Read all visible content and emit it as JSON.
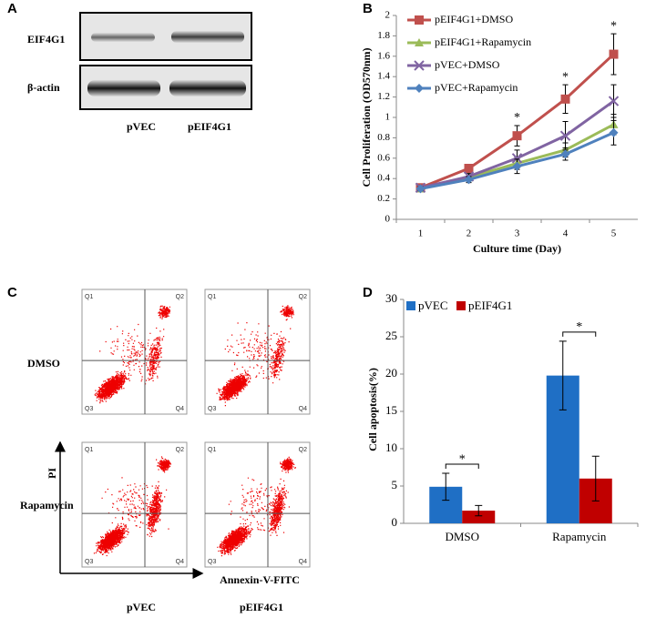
{
  "panel_labels": [
    "A",
    "B",
    "C",
    "D"
  ],
  "blot": {
    "rows": [
      "EIF4G1",
      "β-actin"
    ],
    "lanes": [
      "pVEC",
      "pEIF4G1"
    ]
  },
  "flow": {
    "rows": [
      "DMSO",
      "Rapamycin"
    ],
    "columns": [
      "pVEC",
      "pEIF4G1"
    ],
    "y_label": "PI",
    "x_label": "Annexin-V-FITC",
    "quadrants": [
      "Q1",
      "Q2",
      "Q3",
      "Q4"
    ]
  },
  "chart_data": [
    {
      "type": "line",
      "y_label": "Cell Proliferation (OD570nm)",
      "x_label": "Culture time (Day)",
      "categories": [
        "1",
        "2",
        "3",
        "4",
        "5"
      ],
      "ylim": [
        0,
        2
      ],
      "yticks": [
        0,
        0.2,
        0.4,
        0.6,
        0.8,
        1,
        1.2,
        1.4,
        1.6,
        1.8,
        2
      ],
      "series": [
        {
          "name": "pEIF4G1+DMSO",
          "color": "#c0504d",
          "marker": "square",
          "values": [
            0.31,
            0.5,
            0.82,
            1.18,
            1.62
          ],
          "errors": [
            0.02,
            0.03,
            0.1,
            0.14,
            0.2
          ]
        },
        {
          "name": "pEIF4G1+Rapamycin",
          "color": "#9bbb59",
          "marker": "triangle",
          "values": [
            0.3,
            0.41,
            0.55,
            0.68,
            0.93
          ],
          "errors": [
            0.02,
            0.03,
            0.06,
            0.07,
            0.1
          ]
        },
        {
          "name": "pVEC+DMSO",
          "color": "#8064a2",
          "marker": "x",
          "values": [
            0.31,
            0.42,
            0.6,
            0.82,
            1.16
          ],
          "errors": [
            0.02,
            0.03,
            0.08,
            0.14,
            0.16
          ]
        },
        {
          "name": "pVEC+Rapamycin",
          "color": "#4f81bd",
          "marker": "diamond",
          "values": [
            0.3,
            0.39,
            0.52,
            0.64,
            0.85
          ],
          "errors": [
            0.02,
            0.03,
            0.07,
            0.06,
            0.12
          ]
        }
      ],
      "significance": [
        {
          "category": "3",
          "text": "*"
        },
        {
          "category": "4",
          "text": "*"
        },
        {
          "category": "5",
          "text": "*"
        }
      ]
    },
    {
      "type": "bar",
      "y_label": "Cell apoptosis(%)",
      "categories": [
        "DMSO",
        "Rapamycin"
      ],
      "ylim": [
        0,
        30
      ],
      "yticks": [
        0,
        5,
        10,
        15,
        20,
        25,
        30
      ],
      "series": [
        {
          "name": "pVEC",
          "color": "#1f6fc5",
          "values": [
            4.9,
            19.8
          ],
          "errors": [
            1.8,
            4.6
          ]
        },
        {
          "name": "pEIF4G1",
          "color": "#c00000",
          "values": [
            1.7,
            6.0
          ],
          "errors": [
            0.7,
            3.0
          ]
        }
      ],
      "significance": [
        {
          "category": "DMSO",
          "text": "*"
        },
        {
          "category": "Rapamycin",
          "text": "*"
        }
      ]
    }
  ]
}
